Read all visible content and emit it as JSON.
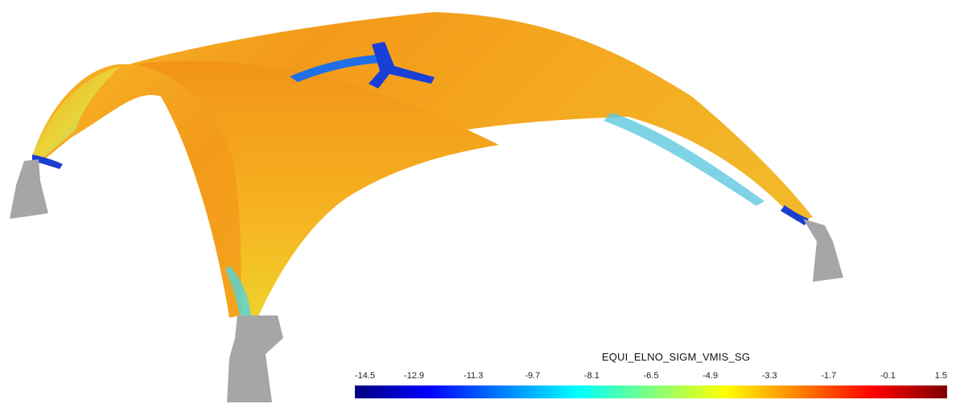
{
  "colormap": {
    "title": "EQUI_ELNO_SIGM_VMIS_SG",
    "ticks": [
      "-14.5",
      "-12.9",
      "-11.3",
      "-9.7",
      "-8.1",
      "-6.5",
      "-4.9",
      "-3.3",
      "-1.7",
      "-0.1",
      "1.5"
    ],
    "colors": [
      "#00007f",
      "#0000ff",
      "#0080ff",
      "#00ffff",
      "#80ff80",
      "#ffff00",
      "#ff8000",
      "#ff0000",
      "#7f0000"
    ]
  },
  "model": {
    "support_color": "#a6a6a6",
    "dominant_color": "#f4a11c"
  }
}
